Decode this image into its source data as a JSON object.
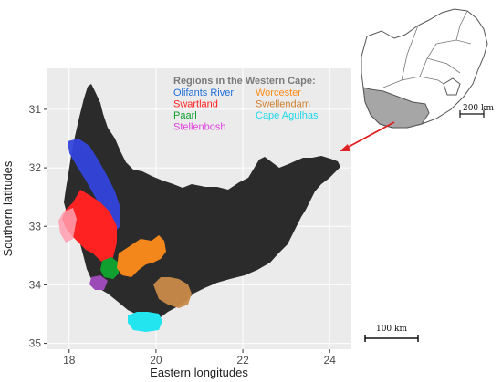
{
  "map": {
    "legend_title": "Regions in the Western Cape:",
    "regions": [
      {
        "name": "Olifants River",
        "color": "#1f6fd9"
      },
      {
        "name": "Swartland",
        "color": "#ff2020"
      },
      {
        "name": "Paarl",
        "color": "#10a030"
      },
      {
        "name": "Stellenbosh",
        "color": "#e040e0"
      },
      {
        "name": "Worcester",
        "color": "#ff8c1a"
      },
      {
        "name": "Swellendam",
        "color": "#d08030"
      },
      {
        "name": "Cape Agulhas",
        "color": "#20d8e8"
      }
    ],
    "x_axis": {
      "label": "Eastern longitudes",
      "ticks": [
        "18",
        "20",
        "22",
        "24"
      ],
      "tick_values": [
        18,
        20,
        22,
        24
      ],
      "range": [
        17.5,
        24.5
      ]
    },
    "y_axis": {
      "label": "Southern latitudes",
      "ticks": [
        "31",
        "32",
        "33",
        "34",
        "35"
      ],
      "tick_values": [
        31,
        32,
        33,
        34,
        35
      ],
      "range": [
        30.3,
        35.1
      ]
    },
    "scale_bar_main": "100 km",
    "inset": {
      "scale_bar": "200 km",
      "highlight_color": "#a6a6a6"
    },
    "colors": {
      "panel_background": "#ebebeb",
      "province_fill": "#2b2b2b",
      "arrow": "#e02020"
    }
  }
}
